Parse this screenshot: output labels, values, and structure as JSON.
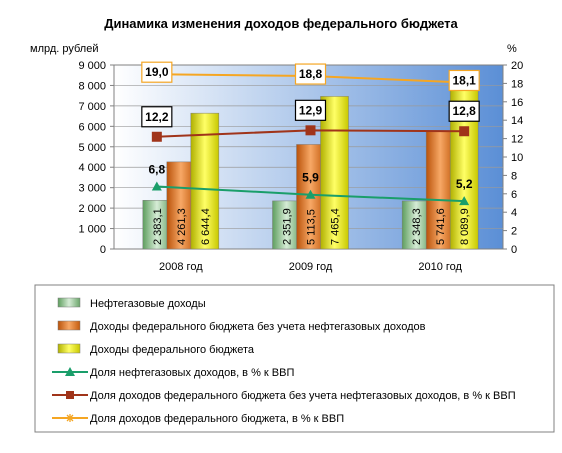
{
  "chart_data": {
    "type": "bar",
    "title": "Динамика изменения доходов федерального бюджета",
    "ylabel_left": "млрд. рублей",
    "ylabel_right": "%",
    "categories": [
      "2008 год",
      "2009 год",
      "2010 год"
    ],
    "ylim_left": [
      0,
      9000
    ],
    "yticks_left": [
      "0",
      "1 000",
      "2 000",
      "3 000",
      "4 000",
      "5 000",
      "6 000",
      "7 000",
      "8 000",
      "9 000"
    ],
    "ylim_right": [
      0,
      20
    ],
    "yticks_right": [
      "0",
      "2",
      "4",
      "6",
      "8",
      "10",
      "12",
      "14",
      "16",
      "18",
      "20"
    ],
    "grid": true,
    "bar_series": [
      {
        "name": "Нефтегазовые доходы",
        "values": [
          2383.1,
          2351.9,
          2348.3
        ],
        "labels": [
          "2 383,1",
          "2 351,9",
          "2 348,3"
        ],
        "color": "#8fbf8f"
      },
      {
        "name": "Доходы федерального бюджета без учета нефтегазовых доходов",
        "values": [
          4261.3,
          5113.5,
          5741.6
        ],
        "labels": [
          "4 261,3",
          "5 113,5",
          "5 741,6"
        ],
        "color": "#e37516"
      },
      {
        "name": "Доходы федерального бюджета",
        "values": [
          6644.4,
          7465.4,
          8089.9
        ],
        "labels": [
          "6 644,4",
          "7 465,4",
          "8 089,9"
        ],
        "color": "#e6e600"
      }
    ],
    "line_series": [
      {
        "name": "Доля нефтегазовых  доходов, в % к ВВП",
        "values": [
          6.8,
          5.9,
          5.2
        ],
        "labels": [
          "6,8",
          "5,9",
          "5,2"
        ],
        "color": "#1a9e6a",
        "marker": "triangle"
      },
      {
        "name": "Доля доходов федерального бюджета без учета нефтегазовых доходов, в % к  ВВП",
        "values": [
          12.2,
          12.9,
          12.8
        ],
        "labels": [
          "12,2",
          "12,9",
          "12,8"
        ],
        "color": "#a0341a",
        "marker": "square"
      },
      {
        "name": "Доля доходов федерального бюджета, в % к  ВВП",
        "values": [
          19.0,
          18.8,
          18.1
        ],
        "labels": [
          "19,0",
          "18,8",
          "18,1"
        ],
        "color": "#f5a623",
        "marker": "star"
      }
    ],
    "legend_position": "bottom"
  }
}
